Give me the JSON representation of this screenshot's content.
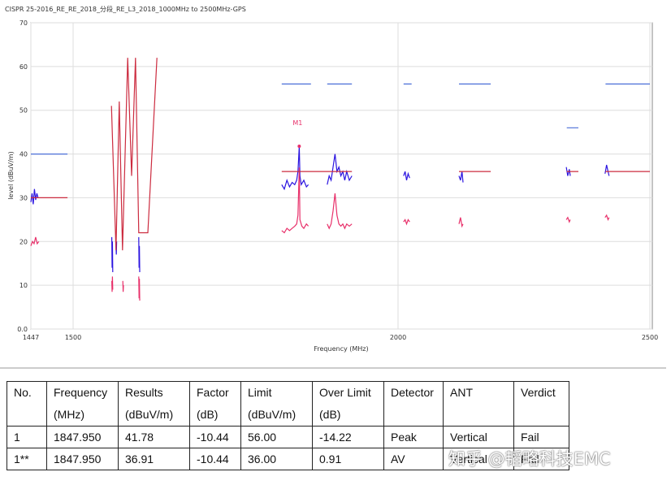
{
  "chart_data": {
    "type": "line",
    "title": "CISPR 25-2016_RE_RE_2018_分段_RE_L3_2018_1000MHz to 2500MHz-GPS",
    "x_label": "Frequency (MHz)",
    "y_label": "level (dBuV/m)",
    "xlim": [
      1447,
      2500
    ],
    "xticks": [
      1447,
      1500,
      2000,
      2500
    ],
    "ylim": [
      0,
      70
    ],
    "yticks": [
      {
        "value": 0,
        "label": "0.0"
      },
      10,
      20,
      30,
      40,
      50,
      60,
      70
    ],
    "grid": true,
    "marker": {
      "label": "M1",
      "x": 1847.95,
      "y": 41.78,
      "color": "#e8306a"
    },
    "series": [
      {
        "color": "#2b14e0",
        "x": [
          1447,
          1448.5,
          1450,
          1451.5,
          1453,
          1454.5,
          1456,
          1500,
          1559.5,
          1560,
          1560.5,
          1561,
          1563,
          1566,
          1566.5,
          1567,
          1580,
          1601,
          1601.5,
          1602,
          1602.5,
          1700,
          1821,
          1825,
          1829,
          1833,
          1837,
          1841,
          1844,
          1846,
          1847.95,
          1849,
          1851,
          1855,
          1859,
          1862,
          1880,
          1891,
          1894,
          1897,
          1900,
          1903,
          1906,
          1909,
          1912,
          1915,
          1918,
          1921,
          1925,
          1929,
          1990,
          2011,
          2014,
          2017,
          2020,
          2023,
          2060,
          2121,
          2124,
          2127,
          2129,
          2250,
          2334,
          2337,
          2340,
          2342,
          2380,
          2411,
          2414,
          2417,
          2419
        ],
        "values": [
          29,
          31,
          28.5,
          32,
          29.5,
          31,
          30,
          null,
          21,
          14,
          20,
          13,
          null,
          19,
          17,
          20,
          null,
          21,
          14,
          19,
          13,
          null,
          33,
          32,
          34,
          32.5,
          33.5,
          33,
          34,
          36,
          41.78,
          35,
          33,
          34,
          32.5,
          33,
          null,
          33,
          35,
          34,
          37,
          40,
          36,
          37,
          35,
          36,
          34,
          36,
          34,
          35,
          null,
          35,
          36,
          34,
          35.5,
          34.5,
          null,
          35,
          34,
          36,
          33.5,
          null,
          37,
          35,
          36.5,
          35,
          null,
          35.5,
          37.5,
          36,
          35
        ]
      },
      {
        "color": "#e8306a",
        "x": [
          1447,
          1449,
          1451,
          1453,
          1455,
          1457,
          1500,
          1559.5,
          1560,
          1560.5,
          1561,
          1563,
          1576.5,
          1577,
          1577.5,
          1580,
          1601,
          1601.5,
          1602,
          1602.5,
          1700,
          1821,
          1825,
          1829,
          1833,
          1837,
          1841,
          1844,
          1846,
          1847.95,
          1849,
          1852,
          1855,
          1859,
          1862,
          1880,
          1891,
          1894,
          1897,
          1900,
          1903,
          1906,
          1909,
          1912,
          1915,
          1918,
          1921,
          1925,
          1929,
          1990,
          2011,
          2014,
          2017,
          2020,
          2023,
          2060,
          2121,
          2124,
          2127,
          2129,
          2250,
          2334,
          2337,
          2340,
          2342,
          2380,
          2411,
          2414,
          2417,
          2419
        ],
        "values": [
          19,
          20,
          19.5,
          21,
          19.5,
          20,
          null,
          11,
          8.5,
          12,
          9,
          null,
          11,
          8.5,
          10,
          null,
          12,
          7,
          11.5,
          6.5,
          null,
          22.5,
          22,
          23,
          22.5,
          23,
          23.5,
          24,
          26,
          36.91,
          25,
          23.5,
          23,
          24,
          23.5,
          null,
          24,
          23,
          24,
          27,
          31,
          26,
          24,
          23.5,
          24,
          23,
          24,
          23.5,
          24,
          null,
          24.5,
          25,
          24,
          25,
          24.5,
          null,
          24,
          25.5,
          23.5,
          24,
          null,
          25,
          25.5,
          24.5,
          25,
          null,
          25.5,
          26,
          25,
          25.5
        ]
      },
      {
        "color": "#4a6fd8",
        "x": [
          1447,
          1493,
          1500,
          1821,
          1866,
          1880,
          1891,
          1929,
          1990,
          2011,
          2027,
          2060,
          2121,
          2184,
          2250,
          2335,
          2358,
          2380,
          2412,
          2500
        ],
        "values": [
          40,
          40,
          null,
          56,
          56,
          null,
          56,
          56,
          null,
          56,
          56,
          null,
          56,
          56,
          null,
          46,
          46,
          null,
          56,
          56
        ]
      },
      {
        "color": "#cc2b3f",
        "x": [
          1447,
          1493,
          1500,
          1559,
          1566,
          1571,
          1576,
          1584,
          1590,
          1596,
          1601,
          1615,
          1629,
          1700,
          1821,
          1929,
          1990,
          2121,
          2184,
          2250,
          2335,
          2358,
          2380,
          2412,
          2500
        ],
        "values": [
          30,
          30,
          null,
          51,
          18,
          52,
          18,
          62,
          35,
          62,
          22,
          22,
          62,
          null,
          36,
          36,
          null,
          36,
          36,
          null,
          36,
          36,
          null,
          36,
          36
        ]
      }
    ]
  },
  "table": {
    "header": [
      [
        "No."
      ],
      [
        "Frequency",
        "(MHz)"
      ],
      [
        "Results",
        "(dBuV/m)"
      ],
      [
        "Factor",
        "(dB)"
      ],
      [
        "Limit",
        "(dBuV/m)"
      ],
      [
        "Over Limit",
        "(dB)"
      ],
      [
        "Detector"
      ],
      [
        "ANT"
      ],
      [
        "Verdict"
      ]
    ],
    "rows": [
      [
        "1",
        "1847.950",
        "41.78",
        "-10.44",
        "56.00",
        "-14.22",
        "Peak",
        "Vertical",
        "Fail"
      ],
      [
        "1**",
        "1847.950",
        "36.91",
        "-10.44",
        "36.00",
        "0.91",
        "AV",
        "Vertical",
        "Fail"
      ]
    ]
  },
  "watermark": "知乎 @韬略科技EMC"
}
